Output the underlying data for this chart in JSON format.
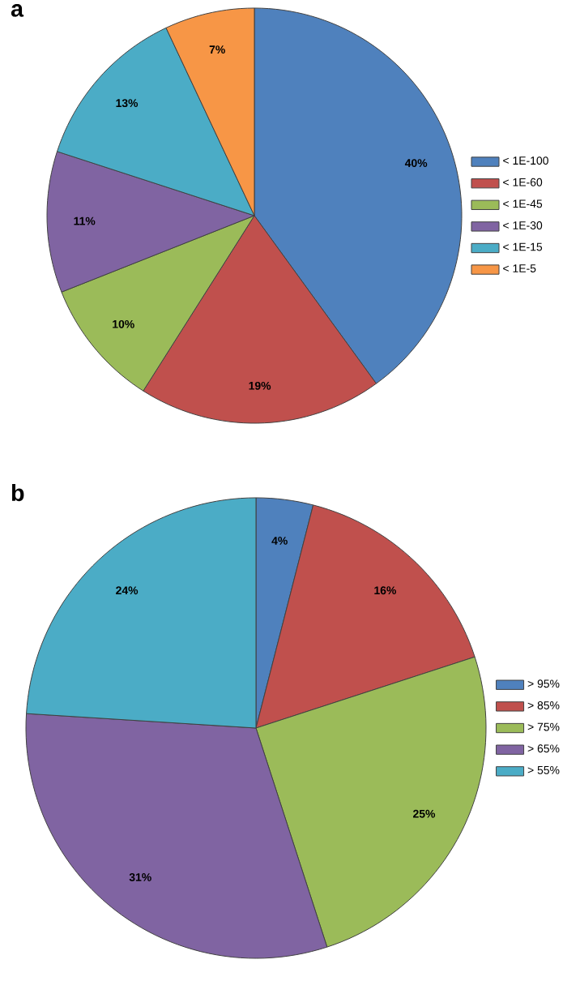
{
  "chart_data": [
    {
      "type": "pie",
      "title": "a",
      "legend": "right",
      "categories": [
        "< 1E-100",
        "< 1E-60",
        "< 1E-45",
        "< 1E-30",
        "< 1E-15",
        "< 1E-5"
      ],
      "values": [
        40,
        19,
        10,
        11,
        13,
        7
      ],
      "value_labels": [
        "40%",
        "19%",
        "10%",
        "11%",
        "13%",
        "7%"
      ],
      "colors": [
        "#4f81bd",
        "#c0504d",
        "#9bbb59",
        "#8064a2",
        "#4bacc6",
        "#f79646"
      ]
    },
    {
      "type": "pie",
      "title": "b",
      "legend": "right",
      "categories": [
        "> 95%",
        "> 85%",
        "> 75%",
        "> 65%",
        "> 55%"
      ],
      "values": [
        4,
        16,
        25,
        31,
        24
      ],
      "value_labels": [
        "4%",
        "16%",
        "25%",
        "31%",
        "24%"
      ],
      "colors": [
        "#4f81bd",
        "#c0504d",
        "#9bbb59",
        "#8064a2",
        "#4bacc6"
      ]
    }
  ]
}
